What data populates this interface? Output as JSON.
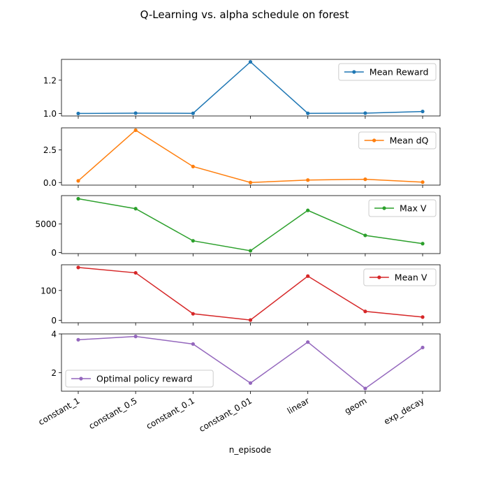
{
  "chart_data": {
    "type": "line",
    "title": "Q-Learning vs. alpha schedule on forest",
    "xlabel": "n_episode",
    "categories": [
      "constant_1",
      "constant_0.5",
      "constant_0.1",
      "constant_0.01",
      "linear",
      "geom",
      "exp_decay"
    ],
    "grid": false,
    "panels": [
      {
        "series_name": "Mean Reward",
        "color": "#1f77b4",
        "values": [
          1.0,
          1.002,
          1.001,
          1.31,
          1.001,
          1.002,
          1.012
        ],
        "ylim": [
          0.985,
          1.325
        ],
        "yticks": [
          1.0,
          1.2
        ],
        "ytick_labels": [
          "1.0",
          "1.2"
        ],
        "legend_loc": "upper right"
      },
      {
        "series_name": "Mean dQ",
        "color": "#ff7f0e",
        "values": [
          0.13,
          4.02,
          1.23,
          0.0,
          0.19,
          0.25,
          0.03
        ],
        "ylim": [
          -0.2,
          4.2
        ],
        "yticks": [
          0.0,
          2.5
        ],
        "ytick_labels": [
          "0.0",
          "2.5"
        ],
        "legend_loc": "upper right"
      },
      {
        "series_name": "Max V",
        "color": "#2ca02c",
        "values": [
          9450,
          7700,
          2050,
          300,
          7400,
          3000,
          1550
        ],
        "ylim": [
          -200,
          10000
        ],
        "yticks": [
          0,
          5000
        ],
        "ytick_labels": [
          "0",
          "5000"
        ],
        "legend_loc": "upper right"
      },
      {
        "series_name": "Mean V",
        "color": "#d62728",
        "values": [
          177,
          159,
          22,
          1,
          148,
          30,
          11
        ],
        "ylim": [
          -8,
          186
        ],
        "yticks": [
          0,
          100
        ],
        "ytick_labels": [
          "0",
          "100"
        ],
        "legend_loc": "upper right"
      },
      {
        "series_name": "Optimal policy reward",
        "color": "#9467bd",
        "values": [
          3.7,
          3.87,
          3.48,
          1.47,
          3.58,
          1.19,
          3.3
        ],
        "ylim": [
          1.05,
          4.0
        ],
        "yticks": [
          2,
          4
        ],
        "ytick_labels": [
          "2",
          "4"
        ],
        "legend_loc": "lower left"
      }
    ]
  }
}
